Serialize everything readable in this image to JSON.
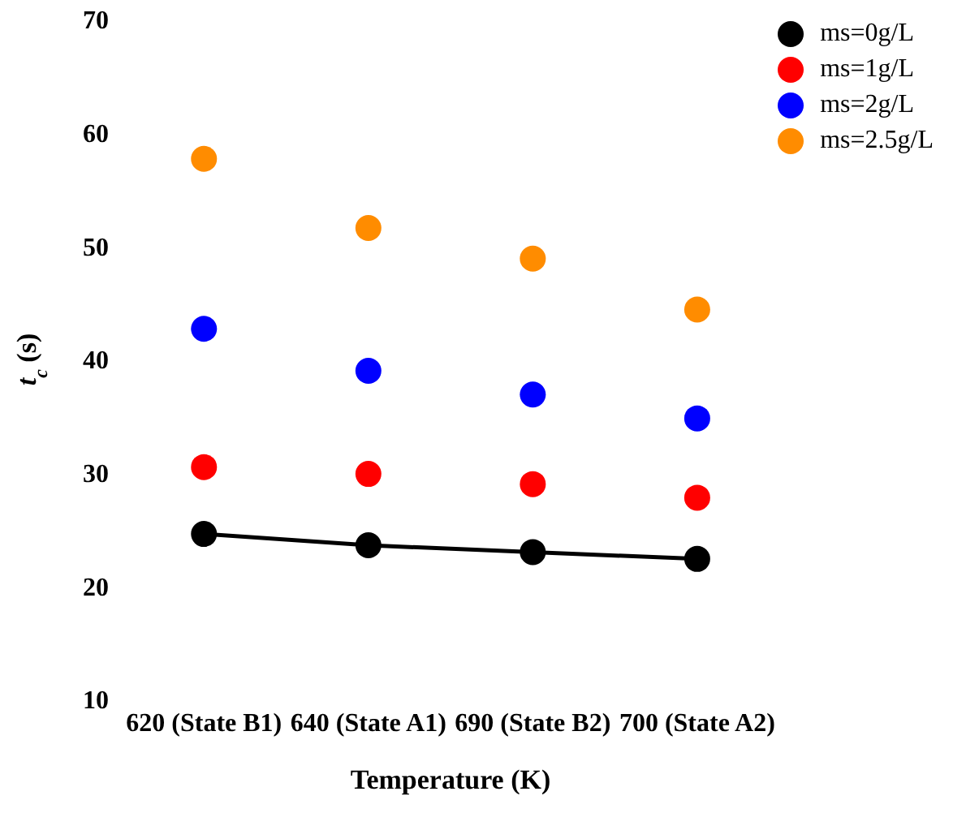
{
  "chart_data": {
    "type": "scatter",
    "xlabel": "Temperature (K)",
    "ylabel": "t$_{c}$ (s)",
    "categories": [
      "620 (State B1)",
      "640 (State A1)",
      "690 (State B2)",
      "700 (State A2)"
    ],
    "ylim": [
      10,
      70
    ],
    "yticks": [
      10,
      20,
      30,
      40,
      50,
      60,
      70
    ],
    "grid": false,
    "legend": "top right",
    "marker": "circle",
    "series": [
      {
        "name": "ms=0g/L",
        "color": "#000000",
        "type": "line",
        "values": [
          24.6,
          23.6,
          23.0,
          22.4
        ]
      },
      {
        "name": "ms=1g/L",
        "color": "#ff0000",
        "values": [
          30.5,
          29.9,
          29.0,
          27.8
        ]
      },
      {
        "name": "ms=2g/L",
        "color": "#0000ff",
        "values": [
          42.7,
          39.0,
          36.9,
          34.8
        ]
      },
      {
        "name": "ms=2.5g/L",
        "color": "#ff8c00",
        "values": [
          57.7,
          51.6,
          48.9,
          44.4
        ]
      }
    ]
  }
}
